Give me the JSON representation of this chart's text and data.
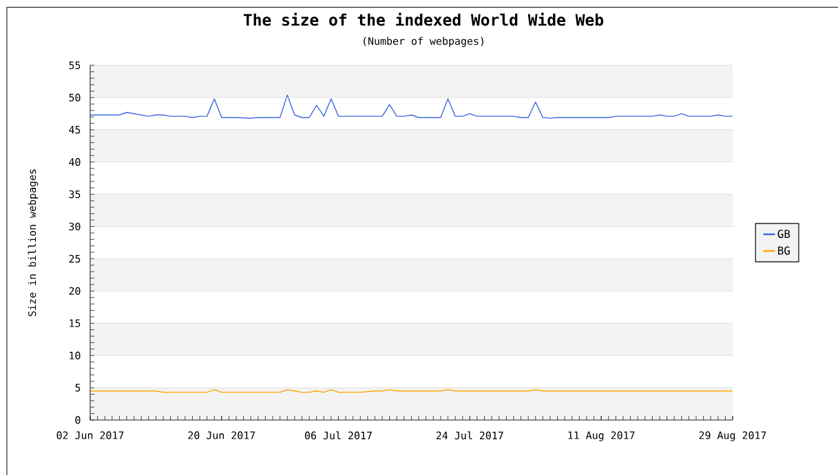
{
  "chart_data": {
    "type": "line",
    "title": "The size of the indexed World Wide Web",
    "subtitle": "(Number of webpages)",
    "ylabel": "Size in billion webpages",
    "xlim": [
      "2017-06-02",
      "2017-08-29"
    ],
    "xticks": [
      {
        "value": "2017-06-02",
        "label": "02 Jun 2017"
      },
      {
        "value": "2017-06-20",
        "label": "20 Jun 2017"
      },
      {
        "value": "2017-07-06",
        "label": "06 Jul 2017"
      },
      {
        "value": "2017-07-24",
        "label": "24 Jul 2017"
      },
      {
        "value": "2017-08-11",
        "label": "11 Aug 2017"
      },
      {
        "value": "2017-08-29",
        "label": "29 Aug 2017"
      }
    ],
    "ylim": [
      0,
      55
    ],
    "yticks": [
      0,
      5,
      10,
      15,
      20,
      25,
      30,
      35,
      40,
      45,
      50,
      55
    ],
    "grid": "y",
    "legend": "right",
    "marker": "none",
    "line_style": "solid",
    "series": [
      {
        "name": "GB",
        "color": "#4169e1",
        "x": [
          "2017-06-02",
          "2017-06-06",
          "2017-06-07",
          "2017-06-10",
          "2017-06-11",
          "2017-06-12",
          "2017-06-13",
          "2017-06-15",
          "2017-06-16",
          "2017-06-17",
          "2017-06-18",
          "2017-06-19",
          "2017-06-20",
          "2017-06-22",
          "2017-06-24",
          "2017-06-25",
          "2017-06-28",
          "2017-06-29",
          "2017-06-30",
          "2017-07-01",
          "2017-07-02",
          "2017-07-03",
          "2017-07-04",
          "2017-07-05",
          "2017-07-06",
          "2017-07-12",
          "2017-07-13",
          "2017-07-14",
          "2017-07-15",
          "2017-07-16",
          "2017-07-17",
          "2017-07-20",
          "2017-07-21",
          "2017-07-22",
          "2017-07-23",
          "2017-07-24",
          "2017-07-25",
          "2017-07-30",
          "2017-07-31",
          "2017-08-01",
          "2017-08-02",
          "2017-08-03",
          "2017-08-04",
          "2017-08-05",
          "2017-08-12",
          "2017-08-13",
          "2017-08-18",
          "2017-08-19",
          "2017-08-20",
          "2017-08-21",
          "2017-08-22",
          "2017-08-23",
          "2017-08-26",
          "2017-08-27",
          "2017-08-28",
          "2017-08-29"
        ],
        "values": [
          47.3,
          47.3,
          47.7,
          47.1,
          47.3,
          47.3,
          47.1,
          47.1,
          46.9,
          47.1,
          47.1,
          49.8,
          46.9,
          46.9,
          46.8,
          46.9,
          46.9,
          50.4,
          47.3,
          46.9,
          46.9,
          48.8,
          47.1,
          49.8,
          47.1,
          47.1,
          48.9,
          47.1,
          47.1,
          47.3,
          46.9,
          46.9,
          49.8,
          47.1,
          47.1,
          47.5,
          47.1,
          47.1,
          46.9,
          46.9,
          49.3,
          46.9,
          46.8,
          46.9,
          46.9,
          47.1,
          47.1,
          47.3,
          47.1,
          47.1,
          47.5,
          47.1,
          47.1,
          47.3,
          47.1,
          47.1
        ]
      },
      {
        "name": "BG",
        "color": "#ffa500",
        "x": [
          "2017-06-02",
          "2017-06-11",
          "2017-06-12",
          "2017-06-18",
          "2017-06-19",
          "2017-06-20",
          "2017-06-28",
          "2017-06-29",
          "2017-06-30",
          "2017-07-01",
          "2017-07-02",
          "2017-07-03",
          "2017-07-04",
          "2017-07-05",
          "2017-07-06",
          "2017-07-09",
          "2017-07-10",
          "2017-07-11",
          "2017-07-12",
          "2017-07-13",
          "2017-07-14",
          "2017-07-20",
          "2017-07-21",
          "2017-07-22",
          "2017-08-01",
          "2017-08-02",
          "2017-08-03",
          "2017-08-29"
        ],
        "values": [
          4.5,
          4.5,
          4.3,
          4.3,
          4.7,
          4.3,
          4.3,
          4.7,
          4.5,
          4.3,
          4.3,
          4.5,
          4.3,
          4.7,
          4.3,
          4.3,
          4.4,
          4.5,
          4.5,
          4.7,
          4.5,
          4.5,
          4.7,
          4.5,
          4.5,
          4.7,
          4.5,
          4.5
        ]
      }
    ]
  }
}
